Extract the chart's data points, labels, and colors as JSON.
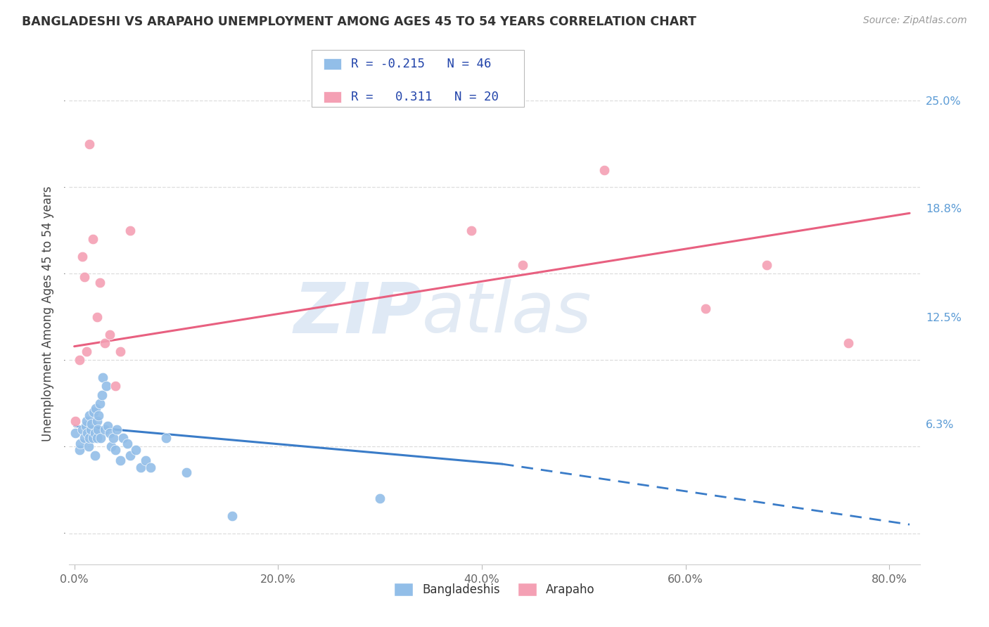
{
  "title": "BANGLADESHI VS ARAPAHO UNEMPLOYMENT AMONG AGES 45 TO 54 YEARS CORRELATION CHART",
  "source": "Source: ZipAtlas.com",
  "ylabel": "Unemployment Among Ages 45 to 54 years",
  "xlabel_ticks": [
    "0.0%",
    "20.0%",
    "40.0%",
    "60.0%",
    "80.0%"
  ],
  "xtick_vals": [
    0.0,
    0.2,
    0.4,
    0.6,
    0.8
  ],
  "ytick_vals": [
    0.0,
    0.063,
    0.125,
    0.188,
    0.25
  ],
  "ytick_labels": [
    "",
    "6.3%",
    "12.5%",
    "18.8%",
    "25.0%"
  ],
  "xlim": [
    -0.005,
    0.83
  ],
  "ylim": [
    -0.018,
    0.272
  ],
  "bangladeshi_color": "#92BEE8",
  "arapaho_color": "#F4A0B4",
  "blue_line_color": "#3A7CC8",
  "pink_line_color": "#E86080",
  "legend_r_bangladeshi": "-0.215",
  "legend_n_bangladeshi": "46",
  "legend_r_arapaho": "0.311",
  "legend_n_arapaho": "20",
  "watermark_zip": "ZIP",
  "watermark_atlas": "atlas",
  "bangladeshi_x": [
    0.001,
    0.005,
    0.006,
    0.008,
    0.01,
    0.011,
    0.012,
    0.013,
    0.014,
    0.015,
    0.015,
    0.016,
    0.017,
    0.018,
    0.019,
    0.02,
    0.02,
    0.021,
    0.022,
    0.022,
    0.023,
    0.024,
    0.025,
    0.026,
    0.027,
    0.028,
    0.03,
    0.031,
    0.033,
    0.035,
    0.036,
    0.038,
    0.04,
    0.042,
    0.045,
    0.048,
    0.052,
    0.055,
    0.06,
    0.065,
    0.07,
    0.075,
    0.09,
    0.11,
    0.155,
    0.3
  ],
  "bangladeshi_y": [
    0.058,
    0.048,
    0.052,
    0.06,
    0.055,
    0.062,
    0.065,
    0.058,
    0.05,
    0.055,
    0.068,
    0.06,
    0.063,
    0.055,
    0.07,
    0.045,
    0.058,
    0.072,
    0.055,
    0.065,
    0.06,
    0.068,
    0.075,
    0.055,
    0.08,
    0.09,
    0.06,
    0.085,
    0.062,
    0.058,
    0.05,
    0.055,
    0.048,
    0.06,
    0.042,
    0.055,
    0.052,
    0.045,
    0.048,
    0.038,
    0.042,
    0.038,
    0.055,
    0.035,
    0.01,
    0.02
  ],
  "arapaho_x": [
    0.001,
    0.005,
    0.008,
    0.01,
    0.012,
    0.015,
    0.018,
    0.022,
    0.025,
    0.03,
    0.035,
    0.04,
    0.045,
    0.055,
    0.39,
    0.44,
    0.52,
    0.62,
    0.68,
    0.76
  ],
  "arapaho_y": [
    0.065,
    0.1,
    0.16,
    0.148,
    0.105,
    0.225,
    0.17,
    0.125,
    0.145,
    0.11,
    0.115,
    0.085,
    0.105,
    0.175,
    0.175,
    0.155,
    0.21,
    0.13,
    0.155,
    0.11
  ],
  "blue_line_x0": 0.0,
  "blue_line_x_solid_end": 0.42,
  "blue_line_x1": 0.82,
  "blue_line_y0": 0.062,
  "blue_line_y_solid_end": 0.04,
  "blue_line_y1": 0.005,
  "pink_line_x0": 0.0,
  "pink_line_x1": 0.82,
  "pink_line_y0": 0.108,
  "pink_line_y1": 0.185
}
